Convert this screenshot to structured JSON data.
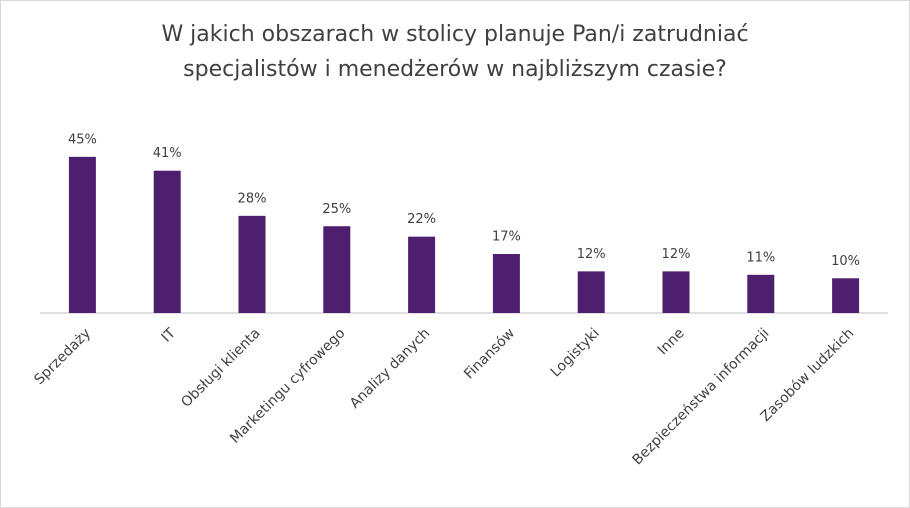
{
  "chart_data": {
    "type": "bar",
    "title": [
      "W jakich obszarach w stolicy planuje Pan/i zatrudniać",
      "specjalistów i menedżerów w najbliższym czasie?"
    ],
    "categories": [
      "Sprzedaży",
      "IT",
      "Obsługi klienta",
      "Marketingu cyfrowego",
      "Analizy danych",
      "Finansów",
      "Logistyki",
      "Inne",
      "Bezpieczeństwa informacji",
      "Zasobów ludzkich"
    ],
    "values": [
      45,
      41,
      28,
      25,
      22,
      17,
      12,
      12,
      11,
      10
    ],
    "value_labels": [
      "45%",
      "41%",
      "28%",
      "25%",
      "22%",
      "17%",
      "12%",
      "12%",
      "11%",
      "10%"
    ],
    "color": "#4f1f6f"
  }
}
